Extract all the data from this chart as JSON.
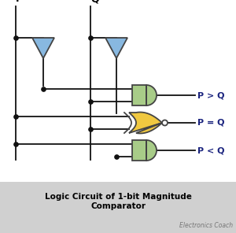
{
  "bg_color": "#ffffff",
  "title_bg": "#d0d0d0",
  "title_text": "Logic Circuit of 1-bit Magnitude\nComparator",
  "subtitle_text": "Electronics Coach",
  "label_P": "P",
  "label_Q": "Q",
  "label_PgQ": "P > Q",
  "label_PeQ": "P = Q",
  "label_PlQ": "P < Q",
  "and_fill": "#a8cc88",
  "and_edge": "#444444",
  "xnor_fill": "#f0c840",
  "xnor_edge": "#444444",
  "not_fill": "#88b8e0",
  "not_edge": "#444444",
  "wire_color": "#111111",
  "dot_color": "#111111",
  "label_color": "#1a237e",
  "title_color": "#000000",
  "sub_color": "#777777"
}
